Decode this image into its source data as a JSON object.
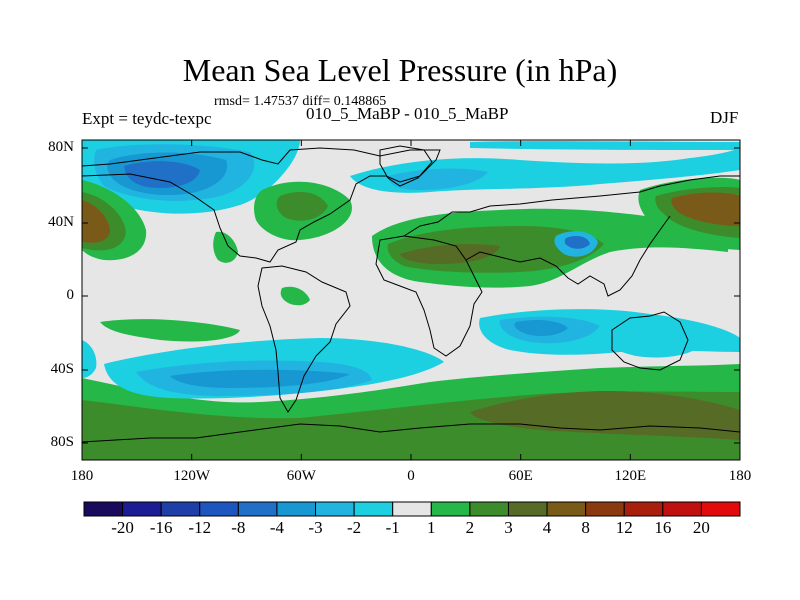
{
  "title": "Mean Sea Level Pressure (in hPa)",
  "stats": "rmsd= 1.47537 diff= 0.148865",
  "expt": "Expt = teydc-texpc",
  "runs": "010_5_MaBP - 010_5_MaBP",
  "season": "DJF",
  "lat_ticks": [
    "80N",
    "40N",
    "0",
    "40S",
    "80S"
  ],
  "lon_ticks": [
    "180",
    "120W",
    "60W",
    "0",
    "60E",
    "120E",
    "180"
  ],
  "colorbar": {
    "labels": [
      "-20",
      "-16",
      "-12",
      "-8",
      "-4",
      "-3",
      "-2",
      "-1",
      "1",
      "2",
      "3",
      "4",
      "8",
      "12",
      "16",
      "20"
    ],
    "colors": [
      "#1a0a5e",
      "#1c1c94",
      "#1f3fa8",
      "#1e56bf",
      "#2070c8",
      "#1898d2",
      "#22b4e0",
      "#1cd0e2",
      "#e6e6e6",
      "#25b849",
      "#3c8c2c",
      "#556b26",
      "#7a5a18",
      "#8b3a10",
      "#a8200c",
      "#c01010",
      "#e20a0a"
    ]
  },
  "palette": {
    "neutral": "#e6e6e6",
    "green": "#25b849",
    "darkgreen": "#3c8c2c",
    "olive": "#556b26",
    "brown": "#7a5a18",
    "cyan": "#1cd0e2",
    "lightblue": "#22b4e0",
    "medblue": "#1898d2",
    "blue": "#2070c8",
    "darkblue": "#1e56bf"
  }
}
